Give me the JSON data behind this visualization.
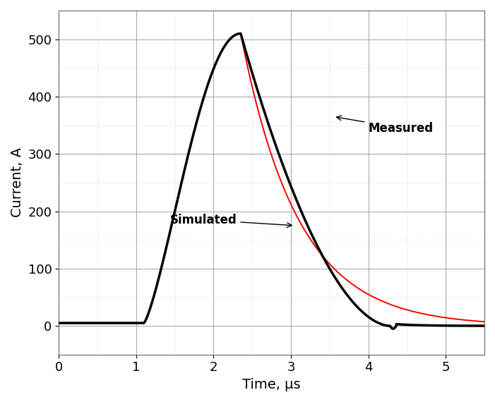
{
  "title": "",
  "xlabel": "Time, μs",
  "ylabel": "Current, A",
  "xlim": [
    0,
    5.5
  ],
  "ylim": [
    -50,
    550
  ],
  "yticks": [
    0,
    100,
    200,
    300,
    400,
    500
  ],
  "xticks": [
    0,
    1,
    2,
    3,
    4,
    5
  ],
  "measured_color": "#000000",
  "simulated_color": "#ff0000",
  "measured_linewidth": 2.5,
  "simulated_linewidth": 1.4,
  "background_color": "#ffffff",
  "grid_major_color": "#aaaaaa",
  "grid_minor_color": "#cccccc",
  "annotation_measured": "Measured",
  "annotation_simulated": "Simulated",
  "peak_current": 510,
  "t_start_rise": 1.1,
  "t_peak": 2.35,
  "t_end_measured": 4.28
}
